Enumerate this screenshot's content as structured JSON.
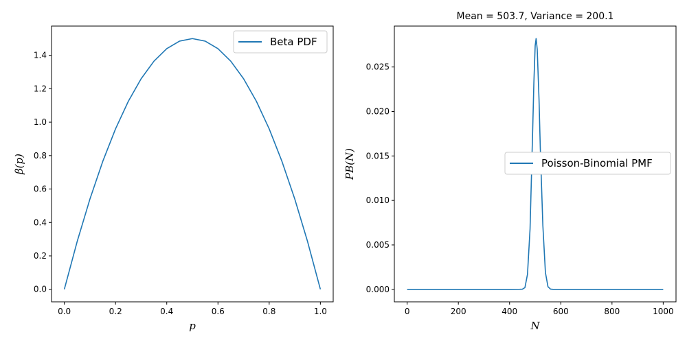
{
  "chart_data": [
    {
      "type": "line",
      "title": "",
      "xlabel": "p",
      "ylabel": "β(p)",
      "xlim": [
        -0.05,
        1.05
      ],
      "ylim": [
        -0.075,
        1.575
      ],
      "xticks": [
        "0.0",
        "0.2",
        "0.4",
        "0.6",
        "0.8",
        "1.0"
      ],
      "yticks": [
        "0.0",
        "0.2",
        "0.4",
        "0.6",
        "0.8",
        "1.0",
        "1.2",
        "1.4"
      ],
      "legend_position": "top-right",
      "grid": false,
      "series": [
        {
          "name": "Beta PDF",
          "color": "#1f77b4",
          "x": [
            0,
            0.05,
            0.1,
            0.15,
            0.2,
            0.25,
            0.3,
            0.35,
            0.4,
            0.45,
            0.5,
            0.55,
            0.6,
            0.65,
            0.7,
            0.75,
            0.8,
            0.85,
            0.9,
            0.95,
            1.0
          ],
          "y": [
            0,
            0.285,
            0.54,
            0.765,
            0.96,
            1.125,
            1.26,
            1.365,
            1.44,
            1.485,
            1.5,
            1.485,
            1.44,
            1.365,
            1.26,
            1.125,
            0.96,
            0.765,
            0.54,
            0.285,
            0
          ]
        }
      ]
    },
    {
      "type": "line",
      "title": "Mean = 503.7, Variance = 200.1",
      "xlabel": "N",
      "ylabel": "PB(N)",
      "xlim": [
        -50,
        1050
      ],
      "ylim": [
        -0.0014,
        0.0296
      ],
      "xticks": [
        "0",
        "200",
        "400",
        "600",
        "800",
        "1000"
      ],
      "yticks": [
        "0.000",
        "0.005",
        "0.010",
        "0.015",
        "0.020",
        "0.025"
      ],
      "legend_position": "center-right",
      "grid": false,
      "series": [
        {
          "name": "Poisson-Binomial PMF",
          "color": "#1f77b4",
          "x": [
            0,
            100,
            200,
            300,
            400,
            440,
            450,
            460,
            470,
            480,
            490,
            495,
            500,
            503.7,
            508,
            515,
            520,
            530,
            540,
            550,
            560,
            570,
            600,
            700,
            800,
            900,
            1000
          ],
          "y": [
            0,
            0,
            0,
            0,
            0,
            1e-05,
            2e-05,
            0.0002,
            0.0017,
            0.0068,
            0.0176,
            0.0233,
            0.0274,
            0.0282,
            0.027,
            0.0214,
            0.0159,
            0.0072,
            0.0019,
            0.0003,
            3e-05,
            0,
            0,
            0,
            0,
            0,
            0
          ]
        }
      ]
    }
  ]
}
